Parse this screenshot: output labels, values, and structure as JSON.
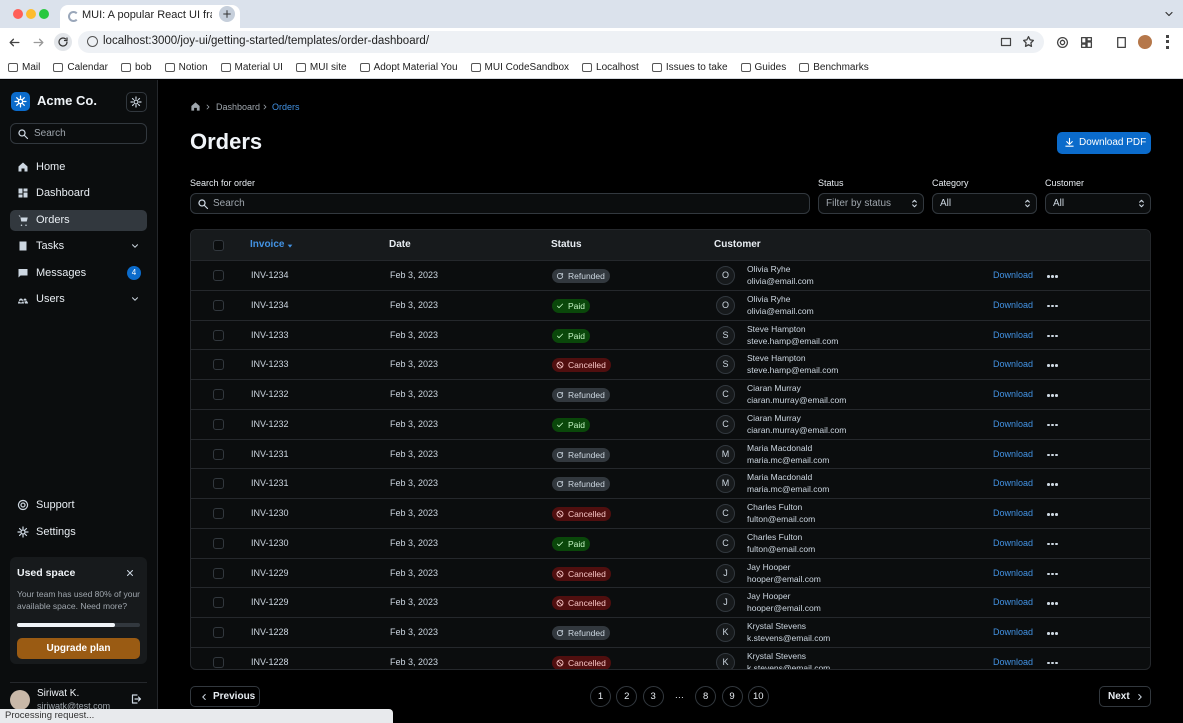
{
  "browser": {
    "tab_title": "MUI: A popular React UI fram",
    "url": "localhost:3000/joy-ui/getting-started/templates/order-dashboard/",
    "bookmarks": [
      "Mail",
      "Calendar",
      "bob",
      "Notion",
      "Material UI",
      "MUI site",
      "Adopt Material You",
      "MUI CodeSandbox",
      "Localhost",
      "Issues to take",
      "Guides",
      "Benchmarks"
    ],
    "status_text": "Processing request..."
  },
  "sidebar": {
    "brand": "Acme Co.",
    "search_placeholder": "Search",
    "nav": [
      {
        "label": "Home"
      },
      {
        "label": "Dashboard"
      },
      {
        "label": "Orders"
      },
      {
        "label": "Tasks"
      },
      {
        "label": "Messages",
        "badge": "4"
      },
      {
        "label": "Users"
      }
    ],
    "bottom_nav": [
      "Support",
      "Settings"
    ],
    "card": {
      "title": "Used space",
      "text": "Your team has used 80% of your available space. Need more?",
      "button": "Upgrade plan"
    },
    "user": {
      "name": "Siriwat K.",
      "email": "siriwatk@test.com"
    }
  },
  "main": {
    "breadcrumbs": [
      "Dashboard",
      "Orders"
    ],
    "title": "Orders",
    "download_button": "Download PDF",
    "filters": {
      "search_label": "Search for order",
      "search_placeholder": "Search",
      "status_label": "Status",
      "status_placeholder": "Filter by status",
      "category_label": "Category",
      "category_value": "All",
      "customer_label": "Customer",
      "customer_value": "All"
    },
    "table": {
      "headers": [
        "Invoice",
        "Date",
        "Status",
        "Customer"
      ],
      "row_action": "Download",
      "status_styles": [
        {
          "name": "Refunded",
          "background": "#32383e",
          "color": "#cdd7e1"
        },
        {
          "name": "Paid",
          "background": "#0a470a",
          "color": "#c7f7c7"
        },
        {
          "name": "Cancelled",
          "background": "#500f0f",
          "color": "#f7c5c5"
        }
      ],
      "rows": [
        {
          "invoice": "INV-1234",
          "date": "Feb 3, 2023",
          "status": "Refunded",
          "initial": "O",
          "name": "Olivia Ryhe",
          "email": "olivia@email.com"
        },
        {
          "invoice": "INV-1234",
          "date": "Feb 3, 2023",
          "status": "Paid",
          "initial": "O",
          "name": "Olivia Ryhe",
          "email": "olivia@email.com"
        },
        {
          "invoice": "INV-1233",
          "date": "Feb 3, 2023",
          "status": "Paid",
          "initial": "S",
          "name": "Steve Hampton",
          "email": "steve.hamp@email.com"
        },
        {
          "invoice": "INV-1233",
          "date": "Feb 3, 2023",
          "status": "Cancelled",
          "initial": "S",
          "name": "Steve Hampton",
          "email": "steve.hamp@email.com"
        },
        {
          "invoice": "INV-1232",
          "date": "Feb 3, 2023",
          "status": "Refunded",
          "initial": "C",
          "name": "Ciaran Murray",
          "email": "ciaran.murray@email.com"
        },
        {
          "invoice": "INV-1232",
          "date": "Feb 3, 2023",
          "status": "Paid",
          "initial": "C",
          "name": "Ciaran Murray",
          "email": "ciaran.murray@email.com"
        },
        {
          "invoice": "INV-1231",
          "date": "Feb 3, 2023",
          "status": "Refunded",
          "initial": "M",
          "name": "Maria Macdonald",
          "email": "maria.mc@email.com"
        },
        {
          "invoice": "INV-1231",
          "date": "Feb 3, 2023",
          "status": "Refunded",
          "initial": "M",
          "name": "Maria Macdonald",
          "email": "maria.mc@email.com"
        },
        {
          "invoice": "INV-1230",
          "date": "Feb 3, 2023",
          "status": "Cancelled",
          "initial": "C",
          "name": "Charles Fulton",
          "email": "fulton@email.com"
        },
        {
          "invoice": "INV-1230",
          "date": "Feb 3, 2023",
          "status": "Paid",
          "initial": "C",
          "name": "Charles Fulton",
          "email": "fulton@email.com"
        },
        {
          "invoice": "INV-1229",
          "date": "Feb 3, 2023",
          "status": "Cancelled",
          "initial": "J",
          "name": "Jay Hooper",
          "email": "hooper@email.com"
        },
        {
          "invoice": "INV-1229",
          "date": "Feb 3, 2023",
          "status": "Cancelled",
          "initial": "J",
          "name": "Jay Hooper",
          "email": "hooper@email.com"
        },
        {
          "invoice": "INV-1228",
          "date": "Feb 3, 2023",
          "status": "Refunded",
          "initial": "K",
          "name": "Krystal Stevens",
          "email": "k.stevens@email.com"
        },
        {
          "invoice": "INV-1228",
          "date": "Feb 3, 2023",
          "status": "Cancelled",
          "initial": "K",
          "name": "Krystal Stevens",
          "email": "k.stevens@email.com"
        }
      ]
    },
    "pagination": {
      "previous": "Previous",
      "pages": [
        1,
        2,
        3,
        "…",
        8,
        9,
        10
      ],
      "next": "Next"
    }
  }
}
